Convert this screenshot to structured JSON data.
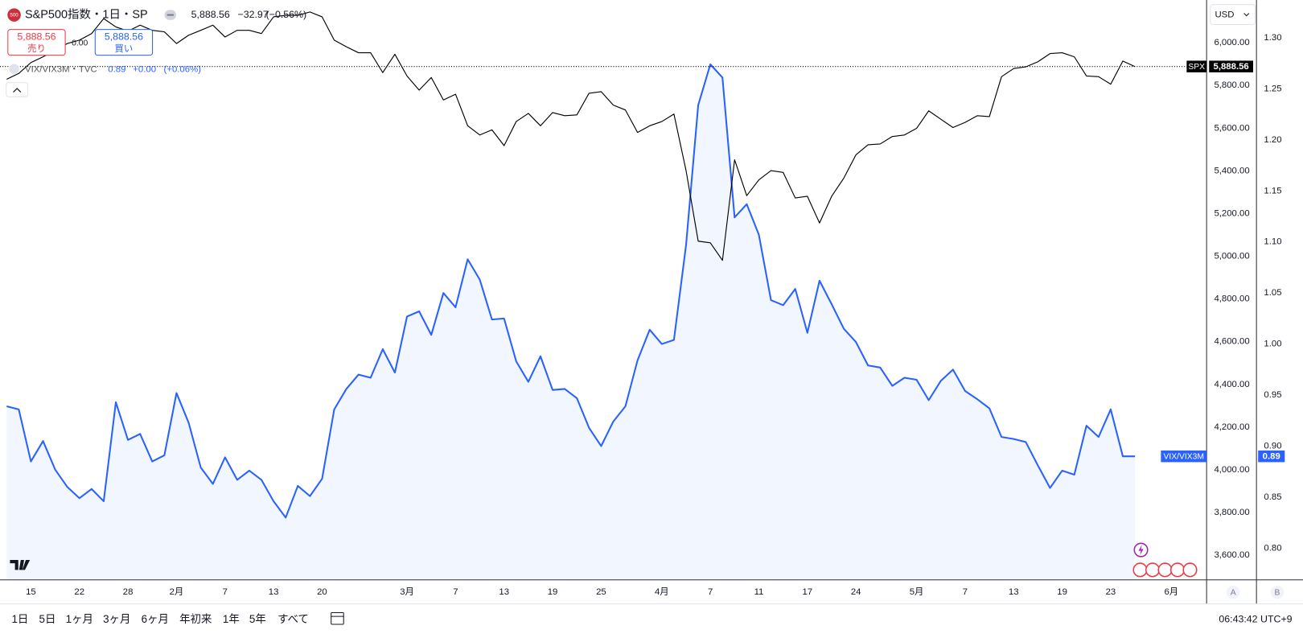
{
  "header": {
    "icon": "500",
    "title": "S&P500指数・1日・SP",
    "price": "5,888.56",
    "change": "−32.97",
    "change_pct": "(−0.56%)",
    "sell_price": "5,888.56",
    "sell_label": "売り",
    "spread": "0.00",
    "buy_price": "5,888.56",
    "buy_label": "買い"
  },
  "legend2": {
    "title": "VIX/VIX3M・TVC",
    "price": "0.89",
    "change": "+0.00",
    "change_pct": "(+0.06%)"
  },
  "currency": "USD",
  "scale_buttons": [
    "A",
    "B"
  ],
  "toolbar": {
    "ranges": [
      "1日",
      "5日",
      "1ヶ月",
      "3ヶ月",
      "6ヶ月",
      "年初来",
      "1年",
      "5年",
      "すべて"
    ],
    "clock": "06:43:42 UTC+9"
  },
  "chart_data": {
    "type": "line",
    "categories": [
      null,
      null,
      "15",
      null,
      null,
      null,
      "22",
      null,
      null,
      null,
      "28",
      null,
      null,
      null,
      "2月",
      null,
      null,
      null,
      "7",
      null,
      null,
      null,
      "13",
      null,
      null,
      null,
      "20",
      null,
      null,
      null,
      null,
      null,
      null,
      "3月",
      null,
      null,
      null,
      "7",
      null,
      null,
      null,
      "13",
      null,
      null,
      null,
      "19",
      null,
      null,
      null,
      "25",
      null,
      null,
      null,
      null,
      "4月",
      null,
      null,
      null,
      "7",
      null,
      null,
      null,
      "11",
      null,
      null,
      null,
      "17",
      null,
      null,
      null,
      "24",
      null,
      null,
      null,
      null,
      "5月",
      null,
      null,
      null,
      "7",
      null,
      null,
      null,
      "13",
      null,
      null,
      null,
      "19",
      null,
      null,
      null,
      "23",
      null,
      null,
      null,
      null,
      "6月"
    ],
    "series": [
      {
        "name": "SPX",
        "color": "#000000",
        "style": "line",
        "last_label": "5,888.56",
        "values": [
          5829,
          5856,
          5907,
          5934,
          5965,
          5996,
          6012,
          6043,
          6113,
          6074,
          6054,
          6082,
          6058,
          6051,
          5996,
          6035,
          6058,
          6082,
          6027,
          6058,
          6058,
          6043,
          6121,
          6128,
          6128,
          6144,
          6121,
          6012,
          5981,
          5953,
          5953,
          5860,
          5946,
          5844,
          5778,
          5837,
          5732,
          5759,
          5611,
          5568,
          5592,
          5518,
          5631,
          5669,
          5611,
          5673,
          5658,
          5662,
          5763,
          5771,
          5708,
          5685,
          5580,
          5611,
          5631,
          5666,
          5401,
          5071,
          5063,
          4981,
          5452,
          5284,
          5358,
          5401,
          5393,
          5273,
          5281,
          5156,
          5281,
          5366,
          5475,
          5522,
          5526,
          5561,
          5568,
          5599,
          5681,
          5642,
          5603,
          5627,
          5658,
          5654,
          5841,
          5879,
          5887,
          5911,
          5949,
          5953,
          5934,
          5844,
          5841,
          5806,
          5914,
          5888.56,
          null,
          null,
          null
        ]
      },
      {
        "name": "VIX/VIX3M",
        "color": "#2962ff",
        "style": "area",
        "axis": "y2",
        "last_label": "0.89",
        "values": [
          0.939,
          0.936,
          0.885,
          0.905,
          0.877,
          0.86,
          0.849,
          0.858,
          0.846,
          0.943,
          0.906,
          0.912,
          0.885,
          0.891,
          0.952,
          0.923,
          0.879,
          0.863,
          0.889,
          0.867,
          0.876,
          0.867,
          0.846,
          0.83,
          0.861,
          0.851,
          0.868,
          0.936,
          0.956,
          0.97,
          0.967,
          0.995,
          0.972,
          1.027,
          1.032,
          1.009,
          1.05,
          1.036,
          1.083,
          1.063,
          1.024,
          1.025,
          0.983,
          0.963,
          0.988,
          0.955,
          0.956,
          0.947,
          0.918,
          0.9,
          0.924,
          0.939,
          0.984,
          1.014,
          1.0,
          1.004,
          1.097,
          1.234,
          1.274,
          1.261,
          1.124,
          1.137,
          1.107,
          1.043,
          1.038,
          1.054,
          1.011,
          1.062,
          1.039,
          1.015,
          1.002,
          0.979,
          0.977,
          0.959,
          0.967,
          0.965,
          0.945,
          0.964,
          0.975,
          0.954,
          0.946,
          0.937,
          0.909,
          0.907,
          0.904,
          0.881,
          0.859,
          0.876,
          0.872,
          0.92,
          0.909,
          0.936,
          0.89,
          0.89,
          null,
          null,
          null
        ]
      }
    ],
    "ylim": [
      3485,
      6200
    ],
    "yticks": [
      {
        "value": 3600,
        "label": "3,600.00"
      },
      {
        "value": 3800,
        "label": "3,800.00"
      },
      {
        "value": 4000,
        "label": "4,000.00"
      },
      {
        "value": 4200,
        "label": "4,200.00"
      },
      {
        "value": 4400,
        "label": "4,400.00"
      },
      {
        "value": 4600,
        "label": "4,600.00"
      },
      {
        "value": 4800,
        "label": "4,800.00"
      },
      {
        "value": 5000,
        "label": "5,000.00"
      },
      {
        "value": 5200,
        "label": "5,200.00"
      },
      {
        "value": 5400,
        "label": "5,400.00"
      },
      {
        "value": 5600,
        "label": "5,600.00"
      },
      {
        "value": 5800,
        "label": "5,800.00"
      },
      {
        "value": 6000,
        "label": "6,000.00"
      }
    ],
    "y2lim": [
      0.769,
      1.337
    ],
    "y2ticks": [
      {
        "value": 0.8,
        "label": "0.80"
      },
      {
        "value": 0.85,
        "label": "0.85"
      },
      {
        "value": 0.9,
        "label": "0.90"
      },
      {
        "value": 0.95,
        "label": "0.95"
      },
      {
        "value": 1.0,
        "label": "1.00"
      },
      {
        "value": 1.05,
        "label": "1.05"
      },
      {
        "value": 1.1,
        "label": "1.10"
      },
      {
        "value": 1.15,
        "label": "1.15"
      },
      {
        "value": 1.2,
        "label": "1.20"
      },
      {
        "value": 1.25,
        "label": "1.25"
      },
      {
        "value": 1.3,
        "label": "1.30"
      }
    ],
    "grid": false
  }
}
